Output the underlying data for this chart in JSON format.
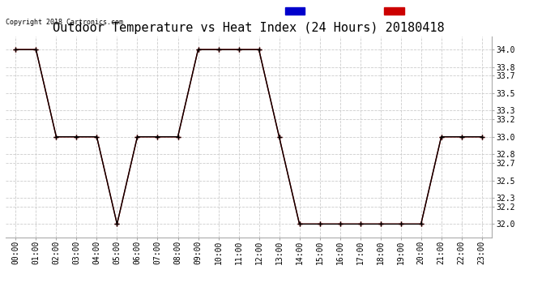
{
  "title": "Outdoor Temperature vs Heat Index (24 Hours) 20180418",
  "copyright": "Copyright 2018 Cartronics.com",
  "x_labels": [
    "00:00",
    "01:00",
    "02:00",
    "03:00",
    "04:00",
    "05:00",
    "06:00",
    "07:00",
    "08:00",
    "09:00",
    "10:00",
    "11:00",
    "12:00",
    "13:00",
    "14:00",
    "15:00",
    "16:00",
    "17:00",
    "18:00",
    "19:00",
    "20:00",
    "21:00",
    "22:00",
    "23:00"
  ],
  "y_ticks": [
    32.0,
    32.2,
    32.3,
    32.5,
    32.7,
    32.8,
    33.0,
    33.2,
    33.3,
    33.5,
    33.7,
    33.8,
    34.0
  ],
  "ylim": [
    31.85,
    34.15
  ],
  "temperature_data": [
    34.0,
    34.0,
    33.0,
    33.0,
    33.0,
    32.0,
    33.0,
    33.0,
    33.0,
    34.0,
    34.0,
    34.0,
    34.0,
    33.0,
    32.0,
    32.0,
    32.0,
    32.0,
    32.0,
    32.0,
    32.0,
    33.0,
    33.0,
    33.0
  ],
  "heat_index_data": [
    34.0,
    34.0,
    33.0,
    33.0,
    33.0,
    32.0,
    33.0,
    33.0,
    33.0,
    34.0,
    34.0,
    34.0,
    34.0,
    33.0,
    32.0,
    32.0,
    32.0,
    32.0,
    32.0,
    32.0,
    32.0,
    33.0,
    33.0,
    33.0
  ],
  "temp_color": "#cc0000",
  "heat_color": "#000000",
  "title_fontsize": 11,
  "legend_heat_bg": "#0000cc",
  "legend_temp_bg": "#cc0000",
  "background_color": "#ffffff",
  "plot_bg": "#ffffff"
}
